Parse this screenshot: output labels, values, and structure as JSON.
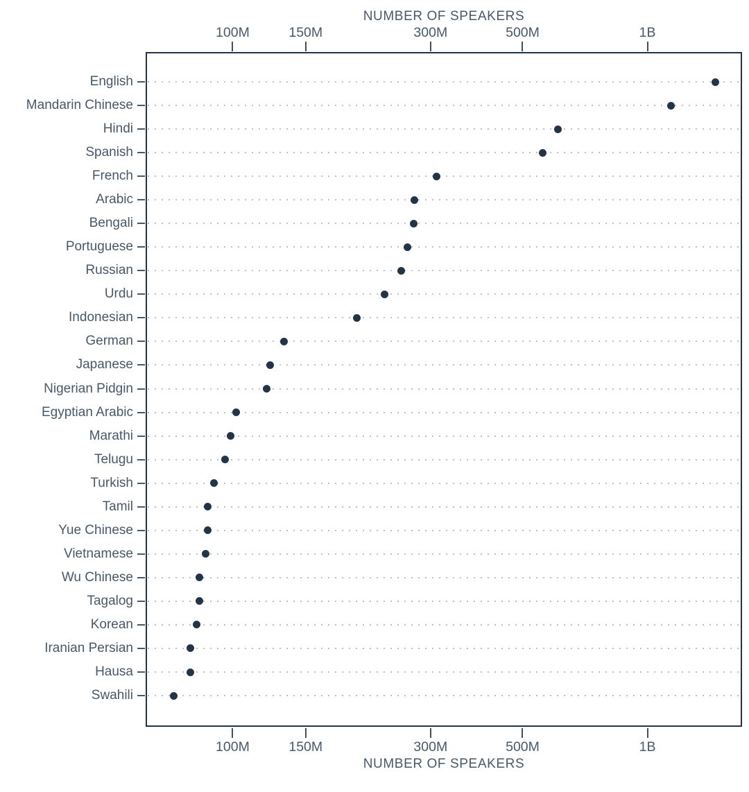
{
  "chart_data": {
    "type": "scatter",
    "variant": "horizontal-dot-plot",
    "title_top": "NUMBER OF SPEAKERS",
    "xlabel_bottom": "NUMBER OF SPEAKERS",
    "x_scale": "log",
    "x_unit": "speakers",
    "x_domain_millions": [
      61.7,
      1691
    ],
    "grid": "dotted-horizontal",
    "legend": "none",
    "x_ticks": [
      {
        "label": "100M",
        "millions": 100
      },
      {
        "label": "150M",
        "millions": 150
      },
      {
        "label": "300M",
        "millions": 300
      },
      {
        "label": "500M",
        "millions": 500
      },
      {
        "label": "1B",
        "millions": 1000
      }
    ],
    "categories": [
      "English",
      "Mandarin Chinese",
      "Hindi",
      "Spanish",
      "French",
      "Arabic",
      "Bengali",
      "Portuguese",
      "Russian",
      "Urdu",
      "Indonesian",
      "German",
      "Japanese",
      "Nigerian Pidgin",
      "Egyptian Arabic",
      "Marathi",
      "Telugu",
      "Turkish",
      "Tamil",
      "Yue Chinese",
      "Vietnamese",
      "Wu Chinese",
      "Tagalog",
      "Korean",
      "Iranian Persian",
      "Hausa",
      "Swahili"
    ],
    "values_millions": [
      1456,
      1138,
      609,
      559,
      310,
      274,
      273,
      264,
      255,
      232,
      199,
      133,
      123,
      121,
      102,
      99,
      96,
      90,
      87,
      87,
      86,
      83,
      83,
      82,
      79,
      79,
      72
    ]
  },
  "colors": {
    "ink": "#233447",
    "text": "#47586b",
    "grid": "#b6c1cc",
    "background": "#ffffff"
  }
}
